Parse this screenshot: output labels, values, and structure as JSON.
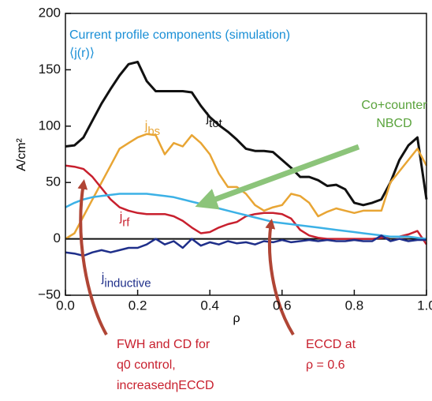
{
  "chart_data": {
    "type": "line",
    "title": "Current profile components (simulation)",
    "subtitle": "⟨j(r)⟩",
    "x_label": "ρ",
    "y_label": "A/cm²",
    "xlim": [
      0,
      1
    ],
    "ylim": [
      -50,
      200
    ],
    "xticks": [
      {
        "value": 0,
        "label": "0.0"
      },
      0.2,
      0.4,
      0.6,
      0.8,
      {
        "value": 1,
        "label": "1.0"
      }
    ],
    "yticks": [
      {
        "value": -50,
        "label": "−50"
      },
      0,
      50,
      100,
      150,
      200
    ],
    "x": [
      0,
      0.025,
      0.05,
      0.075,
      0.1,
      0.125,
      0.15,
      0.175,
      0.2,
      0.225,
      0.25,
      0.275,
      0.3,
      0.325,
      0.35,
      0.375,
      0.4,
      0.425,
      0.45,
      0.475,
      0.5,
      0.525,
      0.55,
      0.575,
      0.6,
      0.625,
      0.65,
      0.675,
      0.7,
      0.725,
      0.75,
      0.775,
      0.8,
      0.825,
      0.85,
      0.875,
      0.9,
      0.925,
      0.95,
      0.975,
      1
    ],
    "series": [
      {
        "name": "jtot",
        "color": "#111111",
        "values": [
          82,
          83,
          90,
          105,
          120,
          133,
          145,
          155,
          157,
          140,
          131,
          131,
          131,
          131,
          130,
          118,
          108,
          101,
          95,
          88,
          80,
          78,
          78,
          77,
          70,
          63,
          55,
          55,
          52,
          47,
          48,
          44,
          32,
          30,
          32,
          35,
          50,
          70,
          83,
          90,
          35
        ]
      },
      {
        "name": "jbs",
        "color": "#e8a534",
        "values": [
          0,
          5,
          20,
          35,
          50,
          65,
          80,
          85,
          90,
          93,
          92,
          75,
          85,
          82,
          92,
          85,
          75,
          58,
          46,
          46,
          40,
          30,
          25,
          28,
          30,
          40,
          38,
          32,
          20,
          24,
          27,
          25,
          23,
          25,
          25,
          25,
          50,
          60,
          70,
          80,
          65
        ]
      },
      {
        "name": "jrf",
        "color": "#c8202e",
        "values": [
          65,
          64,
          62,
          55,
          45,
          35,
          28,
          25,
          23,
          22,
          22,
          22,
          20,
          16,
          10,
          5,
          6,
          10,
          13,
          15,
          20,
          22,
          23,
          23,
          22,
          18,
          8,
          3,
          1,
          0,
          0,
          0,
          0,
          0,
          0,
          1,
          2,
          2,
          4,
          7,
          -5
        ]
      },
      {
        "color": "#3cb1e6",
        "values": [
          28,
          32,
          35,
          37,
          38,
          39,
          40,
          40,
          40,
          40,
          39,
          38,
          37,
          35,
          33,
          31,
          29,
          27,
          25,
          23,
          21,
          19,
          17,
          15,
          14,
          13,
          12,
          11,
          10,
          9,
          8,
          7,
          6,
          5,
          4,
          3,
          2,
          2,
          2,
          1,
          0
        ]
      },
      {
        "name": "jinductive",
        "color": "#1f2f8a",
        "values": [
          -12,
          -13,
          -15,
          -12,
          -10,
          -12,
          -10,
          -8,
          -8,
          -5,
          0,
          -5,
          -2,
          -8,
          0,
          -6,
          -3,
          -5,
          -2,
          -4,
          -3,
          -5,
          -2,
          -3,
          -1,
          -3,
          -2,
          -1,
          -2,
          -1,
          -2,
          -2,
          -1,
          -2,
          -2,
          3,
          -2,
          0,
          -2,
          -1,
          -1
        ]
      }
    ],
    "annotations": [
      {
        "lines": [
          "Co+counter",
          "NBCD"
        ],
        "color": "#5aa33c"
      },
      {
        "lines": [
          "FWH and CD for",
          "q0 control,",
          "increasedηECCD"
        ],
        "color": "#c8202e"
      },
      {
        "lines": [
          "ECCD at",
          "ρ = 0.6"
        ],
        "color": "#c8202e"
      }
    ]
  }
}
